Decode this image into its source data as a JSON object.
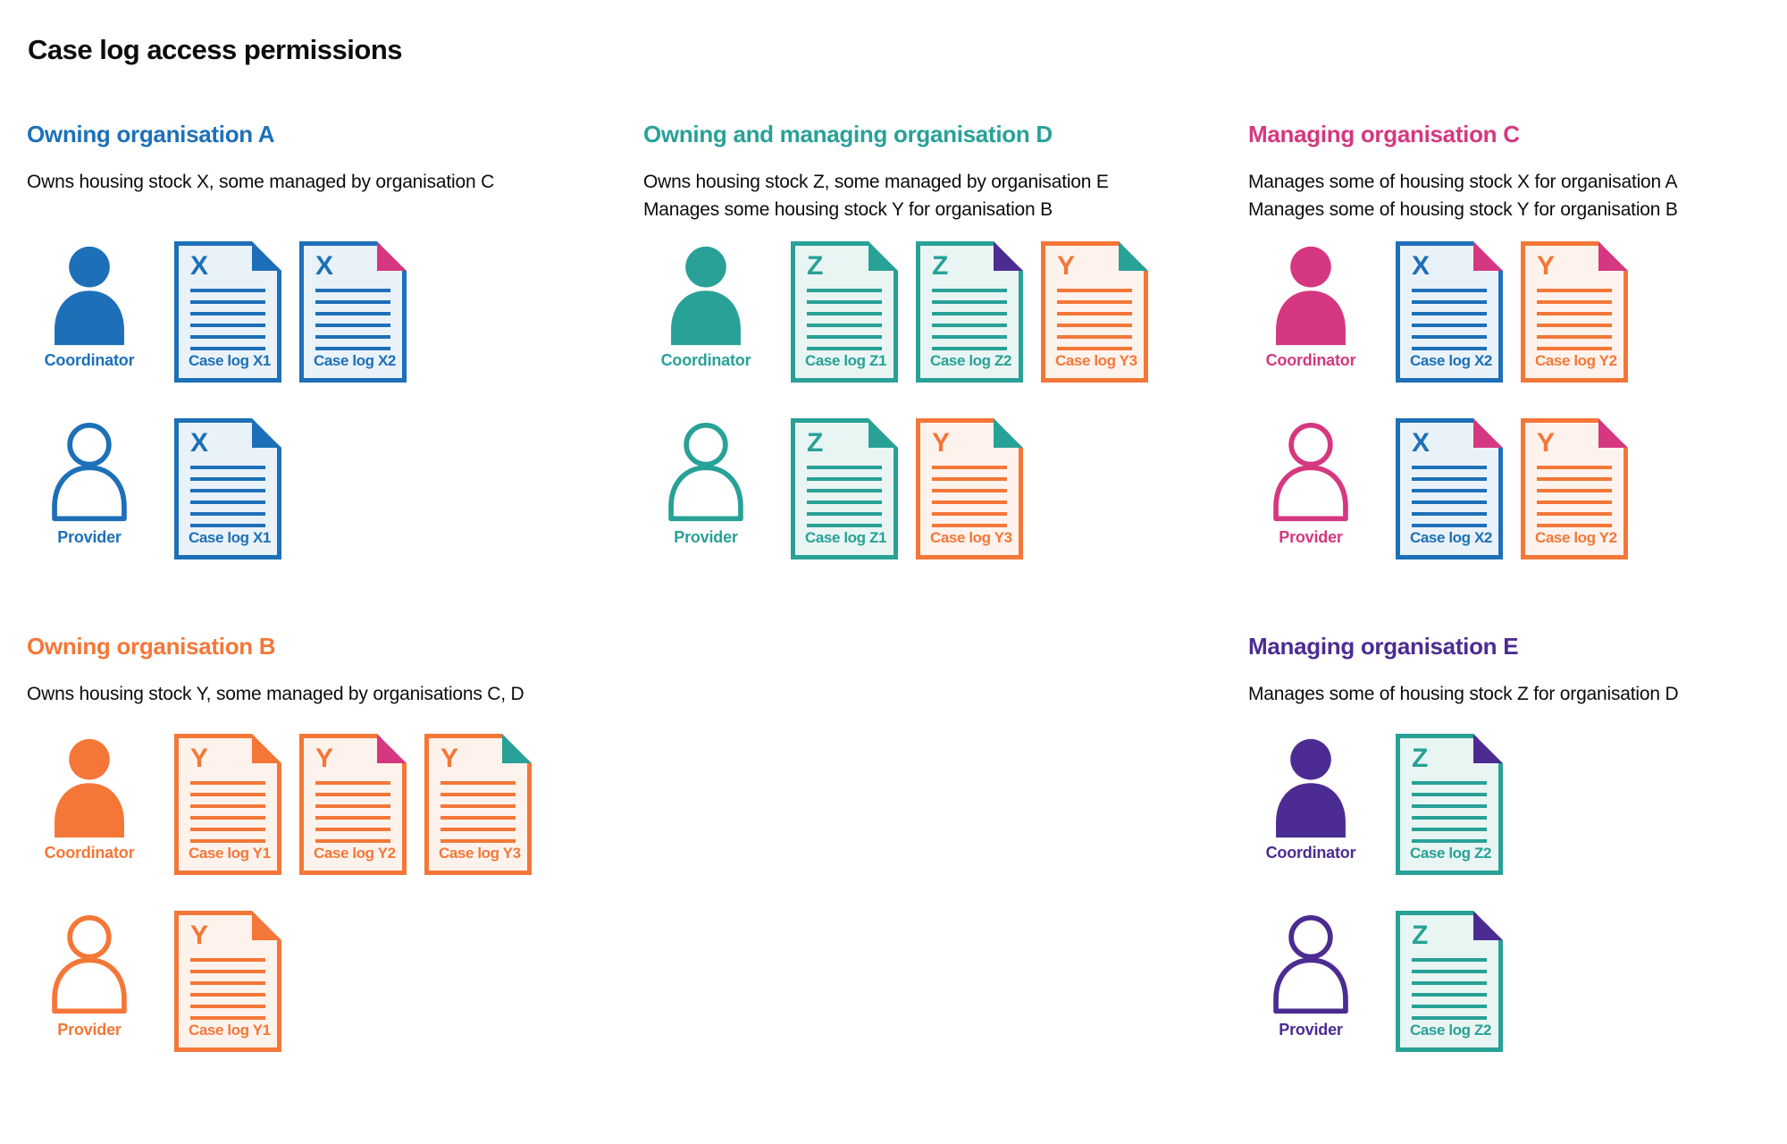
{
  "page": {
    "title": "Case log access permissions"
  },
  "colors": {
    "blue": "#1d70b8",
    "teal": "#28a197",
    "pink": "#d53880",
    "orange": "#f47738",
    "purple": "#4c2c92",
    "text": "#0b0c0c",
    "doc_fill": {
      "blue": "#eaf2f9",
      "teal": "#e9f5f3",
      "orange": "#fef3ec"
    }
  },
  "sections": [
    {
      "id": "org-a",
      "heading": "Owning organisation A",
      "color_name": "blue",
      "description": [
        "Owns housing stock X, some managed by organisation C"
      ],
      "rows": [
        {
          "role": "Coordinator",
          "person": "filled",
          "docs": [
            {
              "letter": "X",
              "label": "Case log X1",
              "doc_color": "blue",
              "fold_color": "blue"
            },
            {
              "letter": "X",
              "label": "Case log X2",
              "doc_color": "blue",
              "fold_color": "pink"
            }
          ]
        },
        {
          "role": "Provider",
          "person": "outline",
          "docs": [
            {
              "letter": "X",
              "label": "Case log X1",
              "doc_color": "blue",
              "fold_color": "blue"
            }
          ]
        }
      ]
    },
    {
      "id": "org-d",
      "heading": "Owning and managing organisation D",
      "color_name": "teal",
      "description": [
        "Owns housing stock Z, some managed by organisation E",
        "Manages some housing stock Y for organisation B"
      ],
      "rows": [
        {
          "role": "Coordinator",
          "person": "filled",
          "docs": [
            {
              "letter": "Z",
              "label": "Case log Z1",
              "doc_color": "teal",
              "fold_color": "teal"
            },
            {
              "letter": "Z",
              "label": "Case log Z2",
              "doc_color": "teal",
              "fold_color": "purple"
            },
            {
              "letter": "Y",
              "label": "Case log Y3",
              "doc_color": "orange",
              "fold_color": "teal"
            }
          ]
        },
        {
          "role": "Provider",
          "person": "outline",
          "docs": [
            {
              "letter": "Z",
              "label": "Case log Z1",
              "doc_color": "teal",
              "fold_color": "teal"
            },
            {
              "letter": "Y",
              "label": "Case log Y3",
              "doc_color": "orange",
              "fold_color": "teal"
            }
          ]
        }
      ]
    },
    {
      "id": "org-c",
      "heading": "Managing organisation C",
      "color_name": "pink",
      "description": [
        "Manages some of housing stock X for organisation A",
        "Manages some of housing stock Y for organisation B"
      ],
      "rows": [
        {
          "role": "Coordinator",
          "person": "filled",
          "docs": [
            {
              "letter": "X",
              "label": "Case log X2",
              "doc_color": "blue",
              "fold_color": "pink"
            },
            {
              "letter": "Y",
              "label": "Case log Y2",
              "doc_color": "orange",
              "fold_color": "pink"
            }
          ]
        },
        {
          "role": "Provider",
          "person": "outline",
          "docs": [
            {
              "letter": "X",
              "label": "Case log X2",
              "doc_color": "blue",
              "fold_color": "pink"
            },
            {
              "letter": "Y",
              "label": "Case log Y2",
              "doc_color": "orange",
              "fold_color": "pink"
            }
          ]
        }
      ]
    },
    {
      "id": "org-b",
      "heading": "Owning organisation B",
      "color_name": "orange",
      "description": [
        "Owns housing stock Y, some managed by organisations C, D"
      ],
      "rows": [
        {
          "role": "Coordinator",
          "person": "filled",
          "docs": [
            {
              "letter": "Y",
              "label": "Case log Y1",
              "doc_color": "orange",
              "fold_color": "orange"
            },
            {
              "letter": "Y",
              "label": "Case log Y2",
              "doc_color": "orange",
              "fold_color": "pink"
            },
            {
              "letter": "Y",
              "label": "Case log Y3",
              "doc_color": "orange",
              "fold_color": "teal"
            }
          ]
        },
        {
          "role": "Provider",
          "person": "outline",
          "docs": [
            {
              "letter": "Y",
              "label": "Case log Y1",
              "doc_color": "orange",
              "fold_color": "orange"
            }
          ]
        }
      ]
    },
    {
      "id": "org-e",
      "heading": "Managing organisation E",
      "color_name": "purple",
      "description": [
        "Manages some of housing stock Z for organisation D"
      ],
      "rows": [
        {
          "role": "Coordinator",
          "person": "filled",
          "docs": [
            {
              "letter": "Z",
              "label": "Case log Z2",
              "doc_color": "teal",
              "fold_color": "purple"
            }
          ]
        },
        {
          "role": "Provider",
          "person": "outline",
          "docs": [
            {
              "letter": "Z",
              "label": "Case log Z2",
              "doc_color": "teal",
              "fold_color": "purple"
            }
          ]
        }
      ]
    }
  ]
}
